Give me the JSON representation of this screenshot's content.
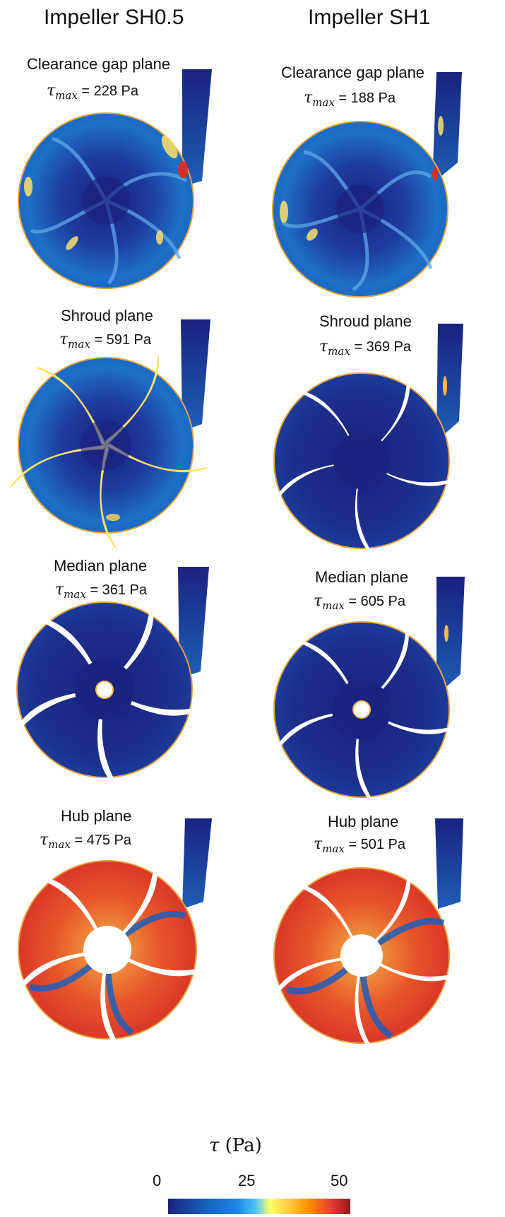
{
  "columns": [
    {
      "title": "Impeller SH0.5"
    },
    {
      "title": "Impeller SH1"
    }
  ],
  "panels": [
    {
      "column": "Impeller SH0.5",
      "plane": "Clearance gap plane",
      "tau_label": "τ",
      "tau_sub": "max",
      "tau_value": "= 228 Pa"
    },
    {
      "column": "Impeller SH1",
      "plane": "Clearance gap plane",
      "tau_label": "τ",
      "tau_sub": "max",
      "tau_value": "= 188 Pa"
    },
    {
      "column": "Impeller SH0.5",
      "plane": "Shroud plane",
      "tau_label": "τ",
      "tau_sub": "max",
      "tau_value": "= 591 Pa"
    },
    {
      "column": "Impeller SH1",
      "plane": "Shroud plane",
      "tau_label": "τ",
      "tau_sub": "max",
      "tau_value": "= 369 Pa"
    },
    {
      "column": "Impeller SH0.5",
      "plane": "Median plane",
      "tau_label": "τ",
      "tau_sub": "max",
      "tau_value": "= 361 Pa"
    },
    {
      "column": "Impeller SH1",
      "plane": "Median plane",
      "tau_label": "τ",
      "tau_sub": "max",
      "tau_value": "= 605 Pa"
    },
    {
      "column": "Impeller SH0.5",
      "plane": "Hub plane",
      "tau_label": "τ",
      "tau_sub": "max",
      "tau_value": "= 475 Pa"
    },
    {
      "column": "Impeller SH1",
      "plane": "Hub plane",
      "tau_label": "τ",
      "tau_sub": "max",
      "tau_value": "= 501 Pa"
    }
  ],
  "colorbar": {
    "title_symbol": "τ",
    "title_unit": "(Pa)",
    "ticks": [
      "0",
      "25",
      "50"
    ],
    "colors": {
      "low": "#1a237e",
      "mid": "#ffff66",
      "high": "#8b1a1a"
    }
  }
}
